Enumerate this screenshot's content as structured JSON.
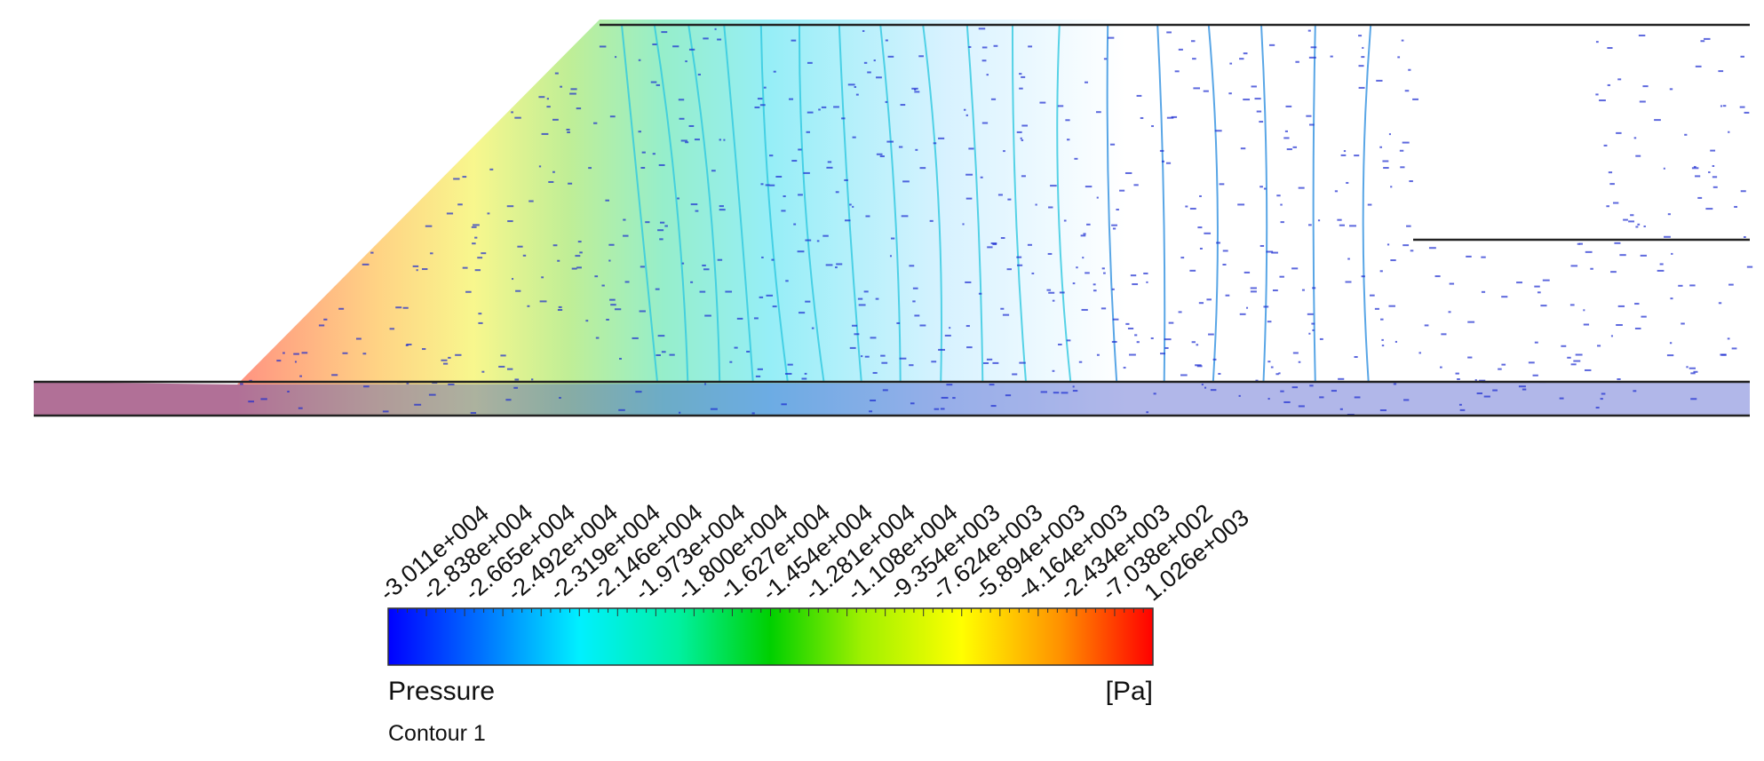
{
  "legend": {
    "variable": "Pressure",
    "unit": "[Pa]",
    "name": "Contour 1",
    "tick_labels": [
      "-3.011e+004",
      "-2.838e+004",
      "-2.665e+004",
      "-2.492e+004",
      "-2.319e+004",
      "-2.146e+004",
      "-1.973e+004",
      "-1.800e+004",
      "-1.627e+004",
      "-1.454e+004",
      "-1.281e+004",
      "-1.108e+004",
      "-9.354e+003",
      "-7.624e+003",
      "-5.894e+003",
      "-4.164e+003",
      "-2.434e+003",
      "-7.038e+002",
      "1.026e+003"
    ]
  }
}
